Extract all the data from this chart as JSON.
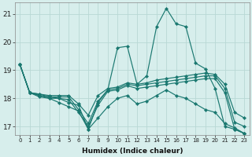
{
  "xlabel": "Humidex (Indice chaleur)",
  "ylabel": "",
  "background_color": "#d7eeec",
  "grid_color": "#b8d8d5",
  "line_color": "#1a7870",
  "xlim": [
    -0.5,
    23.5
  ],
  "ylim": [
    16.7,
    21.4
  ],
  "xticks": [
    0,
    1,
    2,
    3,
    4,
    5,
    6,
    7,
    8,
    9,
    10,
    11,
    12,
    13,
    14,
    15,
    16,
    17,
    18,
    19,
    20,
    21,
    22,
    23
  ],
  "yticks": [
    17,
    18,
    19,
    20,
    21
  ],
  "series": [
    [
      19.2,
      18.2,
      18.15,
      18.05,
      18.0,
      17.85,
      17.75,
      16.9,
      17.85,
      18.3,
      19.8,
      19.85,
      18.5,
      18.8,
      20.55,
      21.2,
      20.65,
      20.55,
      19.25,
      19.05,
      18.35,
      17.0,
      16.9,
      16.75
    ],
    [
      19.2,
      18.2,
      18.15,
      18.1,
      18.1,
      18.1,
      17.8,
      17.4,
      18.1,
      18.35,
      18.4,
      18.55,
      18.5,
      18.55,
      18.65,
      18.7,
      18.75,
      18.8,
      18.85,
      18.9,
      18.85,
      18.5,
      17.5,
      17.3
    ],
    [
      19.2,
      18.2,
      18.1,
      18.05,
      18.05,
      18.05,
      17.6,
      17.1,
      17.9,
      18.3,
      18.35,
      18.5,
      18.45,
      18.5,
      18.55,
      18.6,
      18.65,
      18.7,
      18.75,
      18.8,
      18.8,
      18.35,
      17.15,
      17.0
    ],
    [
      19.2,
      18.2,
      18.05,
      18.0,
      18.0,
      17.95,
      17.5,
      17.0,
      17.75,
      18.25,
      18.3,
      18.45,
      18.35,
      18.4,
      18.45,
      18.5,
      18.55,
      18.6,
      18.65,
      18.7,
      18.7,
      18.2,
      16.9,
      16.75
    ],
    [
      19.2,
      18.2,
      18.1,
      18.0,
      17.85,
      17.7,
      17.55,
      16.9,
      17.3,
      17.7,
      18.0,
      18.1,
      17.8,
      17.9,
      18.1,
      18.3,
      18.1,
      18.0,
      17.8,
      17.6,
      17.5,
      17.1,
      16.95,
      16.75
    ]
  ]
}
